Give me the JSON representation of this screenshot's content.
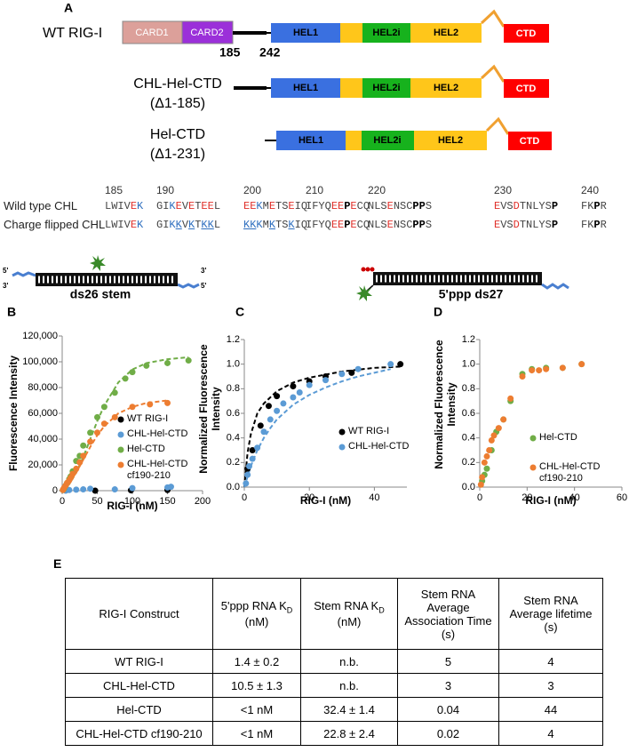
{
  "panel_a": {
    "label": "A",
    "constructs": [
      {
        "name": "WT RIG-I",
        "domains": [
          "CARD1",
          "CARD2",
          "HEL1",
          "HEL2i",
          "HEL2",
          "CTD"
        ],
        "boundaries": [
          185,
          242
        ]
      },
      {
        "name": "CHL-Hel-CTD",
        "deletion": "(Δ1-185)",
        "domains": [
          "HEL1",
          "HEL2i",
          "HEL2",
          "CTD"
        ]
      },
      {
        "name": "Hel-CTD",
        "deletion": "(Δ1-231)",
        "domains": [
          "HEL1",
          "HEL2i",
          "HEL2",
          "CTD"
        ]
      }
    ]
  },
  "sequence_alignment": {
    "positions": [
      185,
      190,
      200,
      210,
      220,
      230,
      240
    ],
    "rows": [
      {
        "name": "Wild type CHL",
        "blocks": [
          [
            {
              "text": "LWIV"
            },
            {
              "text": "E",
              "color": "red"
            },
            {
              "text": "K",
              "color": "blue"
            }
          ],
          [
            {
              "text": "GI"
            },
            {
              "text": "K",
              "color": "blue"
            },
            {
              "text": "E",
              "color": "red"
            },
            {
              "text": "V"
            },
            {
              "text": "E",
              "color": "red"
            },
            {
              "text": "T"
            },
            {
              "text": "EE",
              "color": "red"
            },
            {
              "text": "L"
            }
          ],
          [
            {
              "text": "EE",
              "color": "red"
            },
            {
              "text": "K",
              "color": "blue"
            },
            {
              "text": "M"
            },
            {
              "text": "E",
              "color": "red"
            },
            {
              "text": "TS"
            },
            {
              "text": "E",
              "color": "red"
            },
            {
              "text": "IQ"
            }
          ],
          [
            {
              "text": "IFYQ"
            },
            {
              "text": "EE",
              "color": "red"
            },
            {
              "text": "P",
              "bold": true
            },
            {
              "text": "E",
              "color": "red"
            },
            {
              "text": "CQ"
            }
          ],
          [
            {
              "text": "NLS"
            },
            {
              "text": "E",
              "color": "red"
            },
            {
              "text": "NSC"
            },
            {
              "text": "PP",
              "bold": true
            },
            {
              "text": "S"
            }
          ],
          [
            {
              "text": "E",
              "color": "red"
            },
            {
              "text": "VS"
            },
            {
              "text": "D",
              "color": "red"
            },
            {
              "text": "TNLYS"
            },
            {
              "text": "P",
              "bold": true
            }
          ],
          [
            {
              "text": "FK"
            },
            {
              "text": "P",
              "bold": true
            },
            {
              "text": "R"
            }
          ]
        ]
      },
      {
        "name": "Charge flipped CHL",
        "blocks": [
          [
            {
              "text": "LWIV"
            },
            {
              "text": "E",
              "color": "red"
            },
            {
              "text": "K",
              "color": "blue"
            }
          ],
          [
            {
              "text": "GI"
            },
            {
              "text": "K",
              "color": "blue"
            },
            {
              "text": "K",
              "color": "blue",
              "underline": true
            },
            {
              "text": "V"
            },
            {
              "text": "K",
              "color": "blue",
              "underline": true
            },
            {
              "text": "T"
            },
            {
              "text": "KK",
              "color": "blue",
              "underline": true
            },
            {
              "text": "L"
            }
          ],
          [
            {
              "text": "KK",
              "color": "blue",
              "underline": true
            },
            {
              "text": "K",
              "color": "blue"
            },
            {
              "text": "M"
            },
            {
              "text": "K",
              "color": "blue",
              "underline": true
            },
            {
              "text": "TS"
            },
            {
              "text": "K",
              "color": "blue",
              "underline": true
            },
            {
              "text": "IQ"
            }
          ],
          [
            {
              "text": "IFYQ"
            },
            {
              "text": "EE",
              "color": "red"
            },
            {
              "text": "P",
              "bold": true
            },
            {
              "text": "E",
              "color": "red"
            },
            {
              "text": "CQ"
            }
          ],
          [
            {
              "text": "NLS"
            },
            {
              "text": "E",
              "color": "red"
            },
            {
              "text": "NSC"
            },
            {
              "text": "PP",
              "bold": true
            },
            {
              "text": "S"
            }
          ],
          [
            {
              "text": "E",
              "color": "red"
            },
            {
              "text": "VS"
            },
            {
              "text": "D",
              "color": "red"
            },
            {
              "text": "TNLYS"
            },
            {
              "text": "P",
              "bold": true
            }
          ],
          [
            {
              "text": "FK"
            },
            {
              "text": "P",
              "bold": true
            },
            {
              "text": "R"
            }
          ]
        ]
      }
    ]
  },
  "rna_substrates": [
    {
      "name": "ds26 stem",
      "ends": [
        "5'",
        "3'",
        "3'",
        "5'"
      ]
    },
    {
      "name": "5'ppp ds27"
    }
  ],
  "chart_data": [
    {
      "type": "scatter",
      "label": "B",
      "ylabel": "Fluorescence Intensity",
      "xlabel": "RIG-I (nM)",
      "xlim": [
        0,
        200
      ],
      "xticks": [
        0,
        50,
        100,
        150,
        200
      ],
      "ylim": [
        0,
        120000
      ],
      "yticks": [
        0,
        {
          "value": 20000,
          "label": "20,000"
        },
        {
          "value": 40000,
          "label": "40,000"
        },
        {
          "value": 60000,
          "label": "60,000"
        },
        {
          "value": 80000,
          "label": "80,000"
        },
        {
          "value": 100000,
          "label": "100,000"
        },
        {
          "value": 120000,
          "label": "120,000"
        }
      ],
      "series": [
        {
          "name": "WT RIG-I",
          "color": "#000000",
          "x": [
            47,
            98,
            150
          ],
          "values": [
            0,
            300,
            500
          ]
        },
        {
          "name": "CHL-Hel-CTD",
          "color": "#5b9bd5",
          "x": [
            5,
            10,
            20,
            30,
            40,
            75,
            100,
            150,
            155
          ],
          "values": [
            0,
            500,
            800,
            1000,
            1500,
            1000,
            2000,
            2500,
            3000
          ]
        },
        {
          "name": "Hel-CTD",
          "color": "#70ad47",
          "x": [
            1,
            2,
            3,
            5,
            7,
            10,
            12,
            15,
            20,
            25,
            30,
            40,
            50,
            60,
            75,
            90,
            100,
            120,
            150,
            180
          ],
          "values": [
            500,
            1000,
            2000,
            4000,
            6000,
            9000,
            11000,
            15000,
            23000,
            27000,
            35000,
            45000,
            57000,
            65000,
            76000,
            87000,
            92000,
            97000,
            99000,
            101000
          ],
          "fit_x": [
            0,
            10,
            20,
            30,
            40,
            50,
            60,
            80,
            100,
            120,
            150,
            180
          ],
          "fit_values": [
            0,
            5000,
            14000,
            26000,
            40000,
            54000,
            66000,
            84000,
            94000,
            99000,
            102000,
            103500
          ]
        },
        {
          "name": "CHL-Hel-CTD cf190-210",
          "color": "#ed7d31",
          "x": [
            1,
            2,
            3,
            5,
            7,
            10,
            12,
            15,
            20,
            25,
            30,
            40,
            50,
            60,
            75,
            100,
            125,
            150
          ],
          "values": [
            500,
            1500,
            2500,
            4000,
            6000,
            8000,
            10000,
            13000,
            17000,
            22000,
            27000,
            38000,
            45000,
            52000,
            57000,
            65000,
            67000,
            68000
          ],
          "fit_x": [
            0,
            10,
            20,
            30,
            40,
            50,
            60,
            80,
            100,
            120,
            150
          ],
          "fit_values": [
            0,
            5000,
            14000,
            24000,
            34000,
            43000,
            50000,
            60000,
            65000,
            68000,
            70000
          ]
        }
      ]
    },
    {
      "type": "scatter",
      "label": "C",
      "ylabel": "Normalized Fluorescence Intensity",
      "xlabel": "RIG-I (nM)",
      "xlim": [
        0,
        50
      ],
      "xticks": [
        0,
        20,
        40
      ],
      "ylim": [
        0,
        1.2
      ],
      "yticks": [
        {
          "value": 0,
          "label": "0.0"
        },
        0.2,
        0.4,
        0.6,
        0.8,
        {
          "value": 1,
          "label": "1.0"
        },
        1.2
      ],
      "series": [
        {
          "name": "WT RIG-I",
          "color": "#000000",
          "x": [
            1,
            2.5,
            5,
            7.5,
            10,
            15,
            20,
            25,
            33,
            48
          ],
          "values": [
            0.15,
            0.3,
            0.5,
            0.66,
            0.74,
            0.82,
            0.86,
            0.9,
            0.93,
            1.0
          ],
          "fit_x": [
            0,
            1,
            2,
            4,
            6,
            10,
            15,
            20,
            30,
            40,
            48
          ],
          "fit_values": [
            0,
            0.28,
            0.43,
            0.6,
            0.68,
            0.78,
            0.85,
            0.89,
            0.94,
            0.97,
            0.98
          ]
        },
        {
          "name": "CHL-Hel-CTD",
          "color": "#5b9bd5",
          "x": [
            0.5,
            1,
            1.5,
            2.5,
            4,
            6,
            8,
            10,
            12,
            15,
            17,
            20,
            25,
            30,
            35,
            45
          ],
          "values": [
            0.03,
            0.1,
            0.17,
            0.23,
            0.32,
            0.45,
            0.55,
            0.62,
            0.68,
            0.73,
            0.77,
            0.83,
            0.87,
            0.92,
            0.96,
            1.0
          ],
          "fit_x": [
            0,
            2,
            4,
            6,
            8,
            10,
            15,
            20,
            25,
            30,
            35,
            40,
            45
          ],
          "fit_values": [
            0,
            0.17,
            0.3,
            0.4,
            0.48,
            0.55,
            0.67,
            0.75,
            0.81,
            0.86,
            0.9,
            0.93,
            0.96
          ]
        }
      ]
    },
    {
      "type": "scatter",
      "label": "D",
      "ylabel": "Normalized Fluorescence Intensity",
      "xlabel": "RIG-I (nM)",
      "xlim": [
        0,
        60
      ],
      "xticks": [
        0,
        20,
        40,
        60
      ],
      "ylim": [
        0,
        1.2
      ],
      "yticks": [
        {
          "value": 0,
          "label": "0.0"
        },
        0.2,
        0.4,
        0.6,
        0.8,
        {
          "value": 1,
          "label": "1.0"
        },
        1.2
      ],
      "series": [
        {
          "name": "Hel-CTD",
          "color": "#70ad47",
          "x": [
            1,
            2,
            3,
            5,
            7,
            10,
            13,
            18,
            22,
            28,
            35,
            43
          ],
          "values": [
            0.05,
            0.1,
            0.15,
            0.3,
            0.45,
            0.55,
            0.7,
            0.92,
            0.96,
            0.97,
            0.97,
            1.0
          ]
        },
        {
          "name": "CHL-Hel-CTD cf190-210",
          "color": "#ed7d31",
          "x": [
            0.5,
            1,
            2,
            3,
            4,
            5,
            6,
            8,
            10,
            13,
            18,
            22,
            25,
            28,
            35,
            43
          ],
          "values": [
            0.02,
            0.08,
            0.2,
            0.25,
            0.3,
            0.38,
            0.42,
            0.48,
            0.55,
            0.72,
            0.9,
            0.95,
            0.95,
            0.96,
            0.97,
            1.0
          ]
        }
      ]
    }
  ],
  "table": {
    "label": "E",
    "header": [
      {
        "text": "RIG-I Construct"
      },
      {
        "text": "5'ppp RNA K",
        "sub": "D",
        "tail": " (nM)"
      },
      {
        "text": "Stem RNA K",
        "sub": "D",
        "tail": " (nM)"
      },
      {
        "text": "Stem RNA Average Association Time (s)"
      },
      {
        "text": "Stem RNA Average lifetime (s)"
      }
    ],
    "rows": [
      [
        "WT RIG-I",
        "1.4 ± 0.2",
        "n.b.",
        "5",
        "4"
      ],
      [
        "CHL-Hel-CTD",
        "10.5 ± 1.3",
        "n.b.",
        "3",
        "3"
      ],
      [
        "Hel-CTD",
        "<1 nM",
        "32.4 ± 1.4",
        "0.04",
        "44"
      ],
      [
        "CHL-Hel-CTD cf190-210",
        "<1 nM",
        "22.8 ± 2.4",
        "0.02",
        "4"
      ]
    ]
  }
}
